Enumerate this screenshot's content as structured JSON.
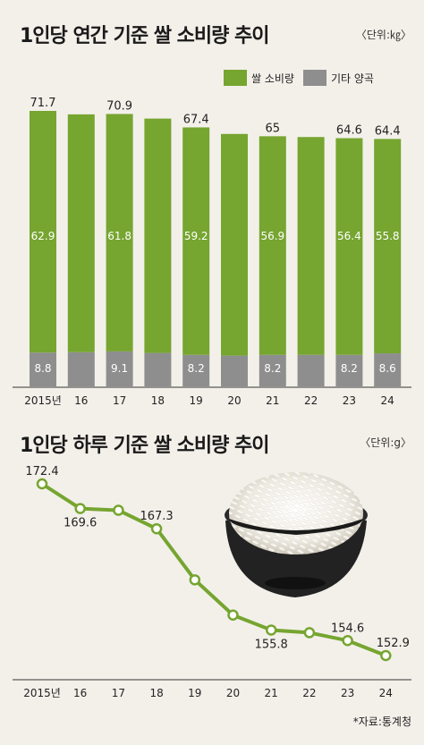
{
  "header": {
    "title1": "1인당 연간 기준 쌀 소비량 추이",
    "unit1": "〈단위:㎏〉",
    "title2": "1인당 하루 기준 쌀 소비량 추이",
    "unit2": "〈단위:g〉",
    "source": "*자료:통계청"
  },
  "legend": {
    "rice": "쌀 소비량",
    "other": "기타 양곡"
  },
  "colors": {
    "rice": "#76a530",
    "other": "#8e8e8e",
    "line": "#76a530",
    "background": "#f3f0ea"
  },
  "chart_data": [
    {
      "type": "bar",
      "stacked": true,
      "categories": [
        "2015년",
        "16",
        "17",
        "18",
        "19",
        "20",
        "21",
        "22",
        "23",
        "24"
      ],
      "series": [
        {
          "name": "쌀 소비량",
          "values": [
            62.9,
            61.9,
            61.8,
            61.0,
            59.2,
            57.7,
            56.9,
            56.7,
            56.4,
            55.8
          ],
          "labels": [
            "62.9",
            "",
            "61.8",
            "",
            "59.2",
            "",
            "56.9",
            "",
            "56.4",
            "55.8"
          ]
        },
        {
          "name": "기타 양곡",
          "values": [
            8.8,
            8.9,
            9.1,
            8.7,
            8.2,
            8.0,
            8.2,
            8.2,
            8.2,
            8.6
          ],
          "labels": [
            "8.8",
            "",
            "9.1",
            "",
            "8.2",
            "",
            "8.2",
            "",
            "8.2",
            "8.6"
          ]
        }
      ],
      "totals": [
        "71.7",
        "",
        "70.9",
        "",
        "67.4",
        "",
        "65",
        "",
        "64.6",
        "64.4"
      ],
      "ylim": [
        0,
        80
      ]
    },
    {
      "type": "line",
      "categories": [
        "2015년",
        "16",
        "17",
        "18",
        "19",
        "20",
        "21",
        "22",
        "23",
        "24"
      ],
      "values": [
        172.4,
        169.6,
        169.4,
        167.3,
        161.5,
        157.5,
        155.8,
        155.5,
        154.6,
        152.9
      ],
      "labels": [
        "172.4",
        "169.6",
        "",
        "167.3",
        "",
        "",
        "155.8",
        "",
        "154.6",
        "152.9"
      ],
      "ylim": [
        148,
        175
      ]
    }
  ]
}
